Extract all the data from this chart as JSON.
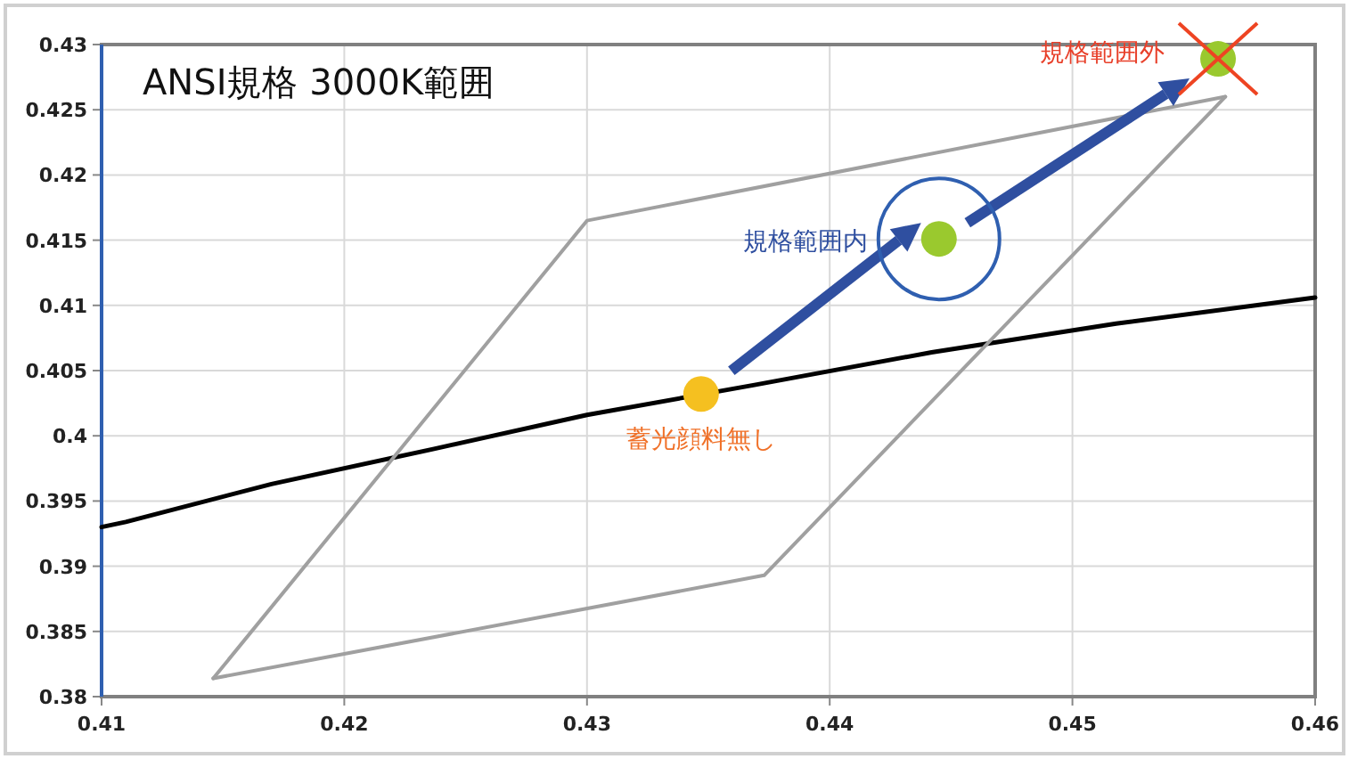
{
  "chart_data": {
    "type": "line",
    "title": "ANSI規格 3000K範囲",
    "xlim": [
      0.41,
      0.46
    ],
    "ylim": [
      0.38,
      0.43
    ],
    "xticks": [
      0.41,
      0.42,
      0.43,
      0.44,
      0.45,
      0.46
    ],
    "yticks": [
      0.38,
      0.385,
      0.39,
      0.395,
      0.4,
      0.405,
      0.41,
      0.415,
      0.42,
      0.425,
      0.43
    ],
    "grid": true,
    "series": [
      {
        "color": "#000000",
        "x": [
          0.41,
          0.411,
          0.417,
          0.4237,
          0.43,
          0.4369,
          0.4442,
          0.4518,
          0.46
        ],
        "values": [
          0.393,
          0.3934,
          0.3963,
          0.399,
          0.4016,
          0.4039,
          0.4064,
          0.4086,
          0.4106
        ]
      },
      {
        "color": "#a0a0a0",
        "x": [
          0.4146,
          0.43,
          0.4563
        ],
        "values": [
          0.3814,
          0.4165,
          0.426
        ]
      },
      {
        "color": "#a0a0a0",
        "x": [
          0.4146,
          0.4373,
          0.4563
        ],
        "values": [
          0.3814,
          0.3893,
          0.426
        ]
      },
      {
        "type": "scatter",
        "color": "#f5c020",
        "x": [
          0.4347
        ],
        "values": [
          0.4032
        ]
      },
      {
        "type": "scatter",
        "color": "#9ac92e",
        "x": [
          0.4445,
          0.456
        ],
        "values": [
          0.4151,
          0.4289
        ]
      }
    ],
    "annotations": [
      {
        "text": "蓄光顔料無し",
        "x": 0.4347,
        "y": 0.4032
      },
      {
        "text": "規格範囲内",
        "x": 0.4445,
        "y": 0.4151
      },
      {
        "text": "規格範囲外",
        "x": 0.456,
        "y": 0.4289
      }
    ]
  }
}
